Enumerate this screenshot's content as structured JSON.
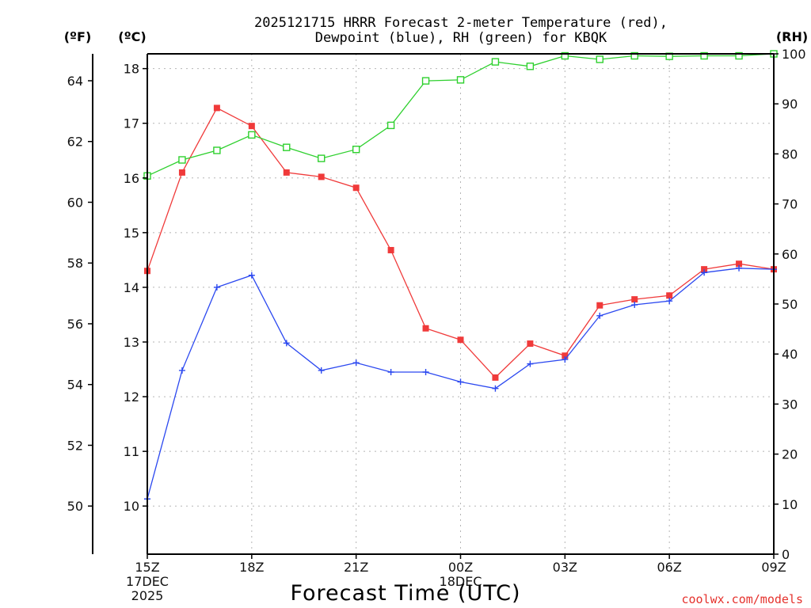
{
  "title_lines": [
    "2025121715 HRRR Forecast 2-meter Temperature (red),",
    "Dewpoint (blue), RH (green) for KBQK"
  ],
  "units": {
    "fahrenheit": "(ºF)",
    "celsius": "(ºC)",
    "rh": "(RH)"
  },
  "x_axis_label": "Forecast Time (UTC)",
  "credit": "coolwx.com/models",
  "colors": {
    "temperature": "#f03a3a",
    "dewpoint": "#2b48f0",
    "rh": "#2ed02e"
  },
  "chart_data": {
    "type": "line",
    "title": "2025121715 HRRR Forecast 2-meter Temperature (red), Dewpoint (blue), RH (green) for KBQK",
    "xlabel": "Forecast Time (UTC)",
    "x_hours": [
      0,
      1,
      2,
      3,
      4,
      5,
      6,
      7,
      8,
      9,
      10,
      11,
      12,
      13,
      14,
      15,
      16,
      17,
      18
    ],
    "x_ticks": [
      {
        "hour": 0,
        "lines": [
          "15Z",
          "17DEC",
          "2025"
        ]
      },
      {
        "hour": 3,
        "lines": [
          "18Z"
        ]
      },
      {
        "hour": 6,
        "lines": [
          "21Z"
        ]
      },
      {
        "hour": 9,
        "lines": [
          "00Z",
          "18DEC"
        ]
      },
      {
        "hour": 12,
        "lines": [
          "03Z"
        ]
      },
      {
        "hour": 15,
        "lines": [
          "06Z"
        ]
      },
      {
        "hour": 18,
        "lines": [
          "09Z"
        ]
      }
    ],
    "left_axis_celsius": {
      "ylim": [
        9.12,
        18.27
      ],
      "ticks": [
        10,
        11,
        12,
        13,
        14,
        15,
        16,
        17,
        18
      ]
    },
    "left_axis_fahrenheit": {
      "ticks": [
        50,
        52,
        54,
        56,
        58,
        60,
        62,
        64
      ]
    },
    "right_axis_rh": {
      "ylim": [
        0,
        100
      ],
      "ticks": [
        0,
        10,
        20,
        30,
        40,
        50,
        60,
        70,
        80,
        90,
        100
      ]
    },
    "grid": true,
    "series": [
      {
        "name": "Temperature",
        "axis": "celsius",
        "marker": "filled-square",
        "values": [
          14.3,
          16.1,
          17.28,
          16.95,
          16.1,
          16.02,
          15.82,
          14.68,
          13.25,
          13.04,
          12.35,
          12.97,
          12.75,
          13.67,
          13.78,
          13.85,
          14.33,
          14.43,
          14.33
        ]
      },
      {
        "name": "Dewpoint",
        "axis": "celsius",
        "marker": "plus",
        "values": [
          10.13,
          12.48,
          14.0,
          14.22,
          12.98,
          12.48,
          12.62,
          12.45,
          12.45,
          12.27,
          12.15,
          12.6,
          12.68,
          13.48,
          13.68,
          13.75,
          14.27,
          14.35,
          14.33
        ]
      },
      {
        "name": "RH",
        "axis": "rh",
        "marker": "open-square",
        "values": [
          75.6,
          78.8,
          80.7,
          83.8,
          81.3,
          79.1,
          80.9,
          85.7,
          94.6,
          94.8,
          98.4,
          97.5,
          99.6,
          98.9,
          99.6,
          99.5,
          99.6,
          99.6,
          100.0
        ]
      }
    ]
  }
}
